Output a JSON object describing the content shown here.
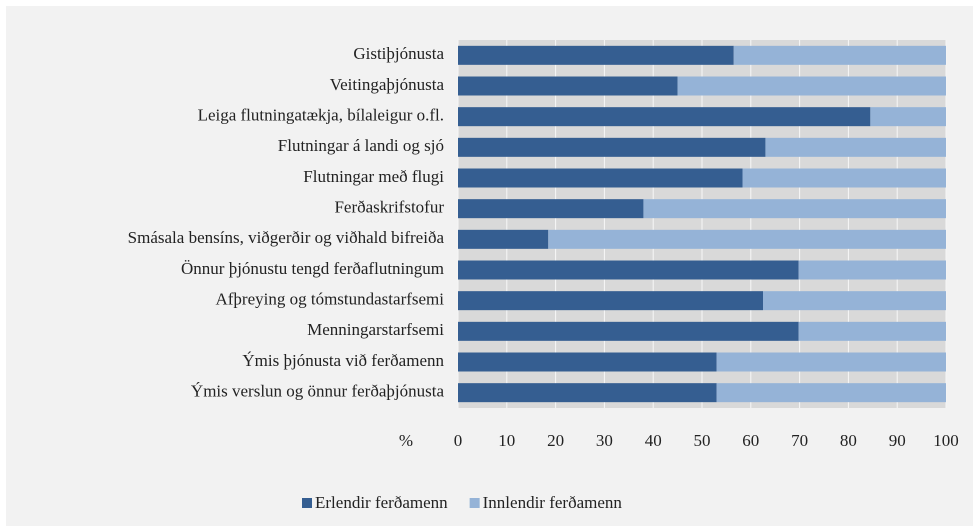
{
  "chart_data": {
    "type": "stacked_barh",
    "categories": [
      "Gistiþjónusta",
      "Veitingaþjónusta",
      "Leiga flutningatækja, bílaleigur o.fl.",
      "Flutningar á landi og sjó",
      "Flutningar með flugi",
      "Ferðaskrifstofur",
      "Smásala bensíns, viðgerðir og viðhald bifreiða",
      "Önnur þjónustu tengd ferðaflutningum",
      "Afþreying og tómstundastarfsemi",
      "Menningarstarfsemi",
      "Ýmis  þjónusta við ferðamenn",
      "Ýmis verslun og önnur ferðaþjónusta"
    ],
    "series": [
      {
        "name": "Erlendir ferðamenn",
        "color": "#355e91",
        "values": [
          56.5,
          45,
          84.5,
          63,
          58.3,
          38,
          18.5,
          69.8,
          62.5,
          69.8,
          53,
          53
        ]
      },
      {
        "name": "Innlendir ferðamenn",
        "color": "#95b3d7",
        "values": [
          43.5,
          55,
          15.5,
          37,
          41.7,
          62,
          81.5,
          30.2,
          37.5,
          30.2,
          47,
          47
        ]
      }
    ],
    "x_label": "%",
    "xlim": [
      0,
      100
    ],
    "xticks": [
      0,
      10,
      20,
      30,
      40,
      50,
      60,
      70,
      80,
      90,
      100
    ],
    "grid": true,
    "legend": "bottom"
  }
}
